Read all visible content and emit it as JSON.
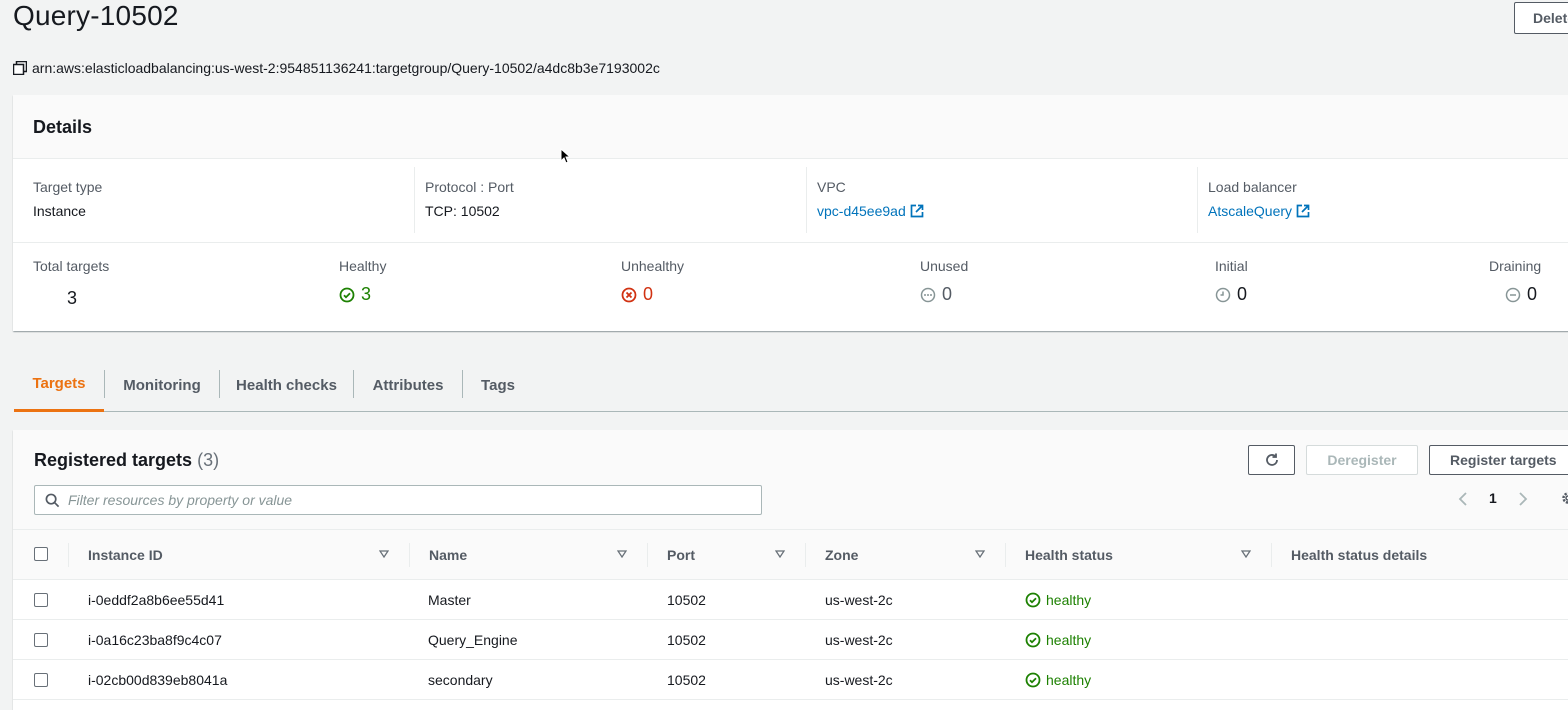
{
  "header": {
    "title": "Query-10502",
    "delete_label": "Delete",
    "arn": "arn:aws:elasticloadbalancing:us-west-2:954851136241:targetgroup/Query-10502/a4dc8b3e7193002c"
  },
  "details": {
    "title": "Details",
    "target_type": {
      "label": "Target type",
      "value": "Instance"
    },
    "protocol_port": {
      "label": "Protocol : Port",
      "value": "TCP: 10502"
    },
    "vpc": {
      "label": "VPC",
      "value": "vpc-d45ee9ad"
    },
    "load_balancer": {
      "label": "Load balancer",
      "value": "AtscaleQuery"
    },
    "stats": {
      "total": {
        "label": "Total targets",
        "value": "3"
      },
      "healthy": {
        "label": "Healthy",
        "value": "3"
      },
      "unhealthy": {
        "label": "Unhealthy",
        "value": "0"
      },
      "unused": {
        "label": "Unused",
        "value": "0"
      },
      "initial": {
        "label": "Initial",
        "value": "0"
      },
      "draining": {
        "label": "Draining",
        "value": "0"
      }
    }
  },
  "tabs": [
    {
      "label": "Targets",
      "active": true
    },
    {
      "label": "Monitoring"
    },
    {
      "label": "Health checks"
    },
    {
      "label": "Attributes"
    },
    {
      "label": "Tags"
    }
  ],
  "registered": {
    "title": "Registered targets",
    "count": "(3)",
    "deregister_label": "Deregister",
    "register_label": "Register targets",
    "search_placeholder": "Filter resources by property or value",
    "page": "1",
    "columns": [
      "Instance ID",
      "Name",
      "Port",
      "Zone",
      "Health status",
      "Health status details"
    ],
    "rows": [
      {
        "id": "i-0eddf2a8b6ee55d41",
        "name": "Master",
        "port": "10502",
        "zone": "us-west-2c",
        "health": "healthy"
      },
      {
        "id": "i-0a16c23ba8f9c4c07",
        "name": "Query_Engine",
        "port": "10502",
        "zone": "us-west-2c",
        "health": "healthy"
      },
      {
        "id": "i-02cb00d839eb8041a",
        "name": "secondary",
        "port": "10502",
        "zone": "us-west-2c",
        "health": "healthy"
      }
    ]
  },
  "colors": {
    "link": "#0073bb",
    "healthy": "#1d8102",
    "unhealthy": "#d13212",
    "active_tab": "#ec7211",
    "muted": "#879596"
  }
}
